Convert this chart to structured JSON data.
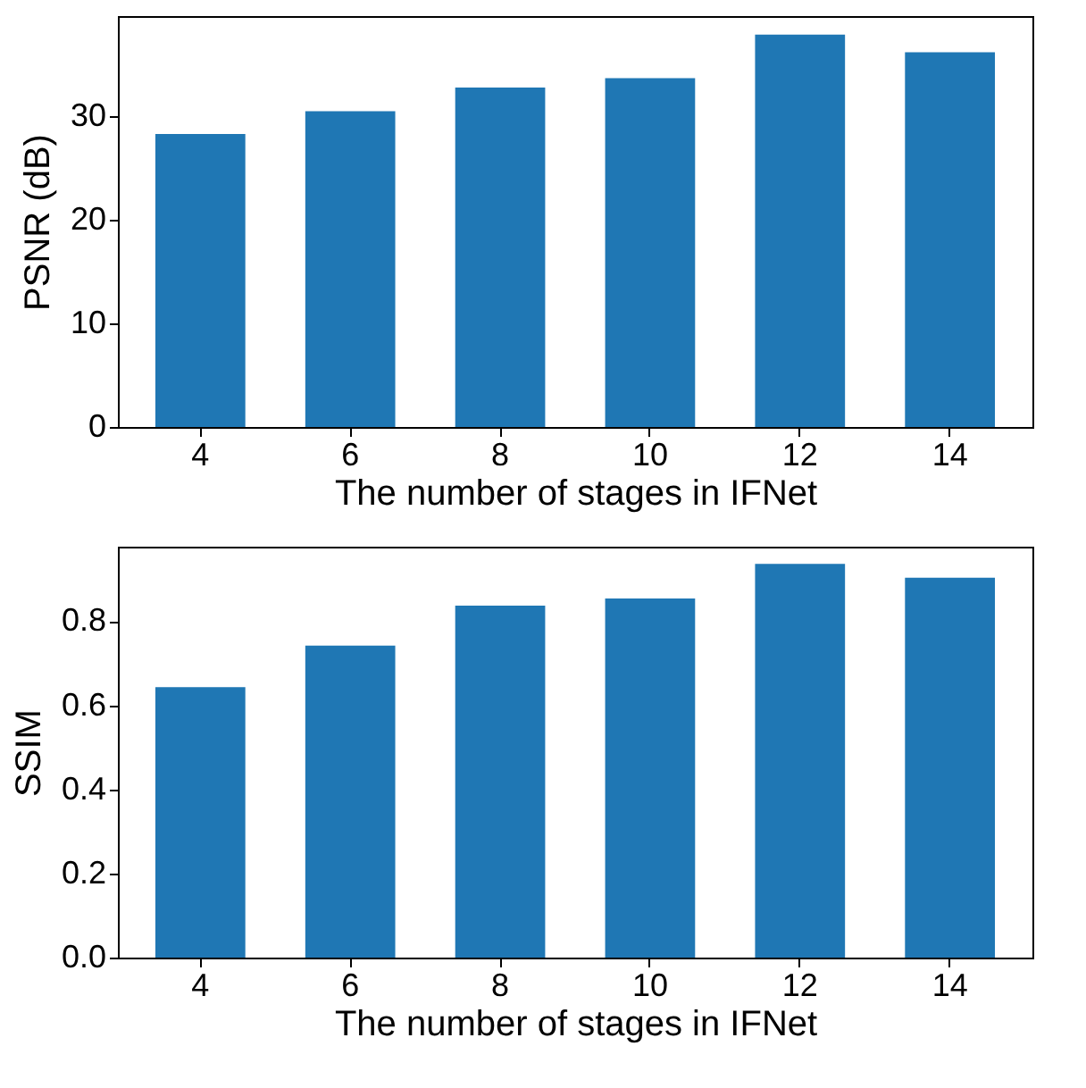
{
  "chart_data": [
    {
      "type": "bar",
      "categories": [
        "4",
        "6",
        "8",
        "10",
        "12",
        "14"
      ],
      "values": [
        28.3,
        30.5,
        32.8,
        33.7,
        37.9,
        36.2
      ],
      "color": "#1f77b4",
      "xlabel": "The number of stages in IFNet",
      "ylabel": "PSNR (dB)",
      "ylim": [
        0,
        39.7
      ],
      "yticks": [
        0,
        10,
        20,
        30
      ]
    },
    {
      "type": "bar",
      "categories": [
        "4",
        "6",
        "8",
        "10",
        "12",
        "14"
      ],
      "values": [
        0.643,
        0.742,
        0.837,
        0.854,
        0.936,
        0.903
      ],
      "color": "#1f77b4",
      "xlabel": "The number of stages in IFNet",
      "ylabel": "SSIM",
      "ylim": [
        0,
        0.977
      ],
      "yticks": [
        {
          "value": 0,
          "label": "0.0"
        },
        0.2,
        0.4,
        0.6,
        0.8
      ]
    }
  ]
}
